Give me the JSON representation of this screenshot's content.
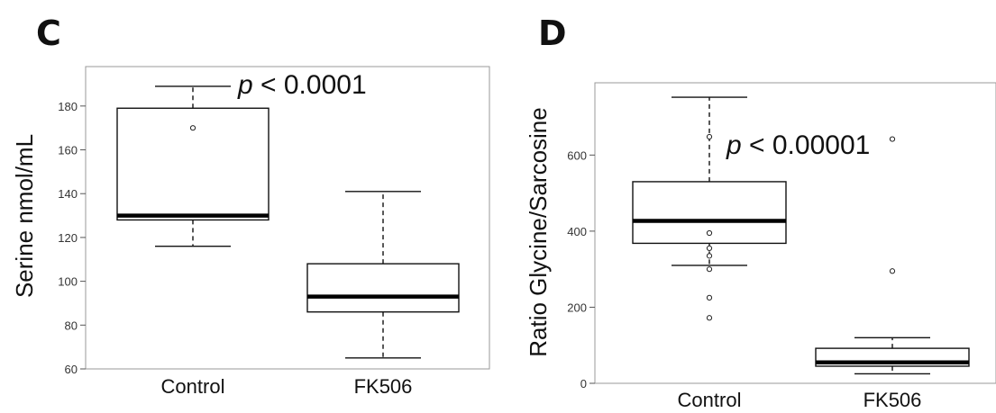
{
  "chart_data": [
    {
      "panel": "C",
      "type": "box",
      "ylabel": "Serine nmol/mL",
      "ylim": [
        60,
        198
      ],
      "yticks": [
        60,
        80,
        100,
        120,
        140,
        160,
        180
      ],
      "categories": [
        "Control",
        "FK506"
      ],
      "boxes": [
        {
          "category": "Control",
          "whisker_low": 116,
          "q1": 128,
          "median": 130,
          "q3": 179,
          "whisker_high": 189,
          "points": [
            170
          ]
        },
        {
          "category": "FK506",
          "whisker_low": 65,
          "q1": 86,
          "median": 93,
          "q3": 108,
          "whisker_high": 141,
          "points": []
        }
      ],
      "annotation": {
        "p": "p",
        "rest": " < 0.0001"
      },
      "grid": false,
      "legend": "none"
    },
    {
      "panel": "D",
      "type": "box",
      "ylabel": "Ratio Glycine/Sarcosine",
      "ylim": [
        0,
        790
      ],
      "yticks": [
        0,
        200,
        400,
        600
      ],
      "categories": [
        "Control",
        "FK506"
      ],
      "boxes": [
        {
          "category": "Control",
          "whisker_low": 310,
          "q1": 368,
          "median": 427,
          "q3": 530,
          "whisker_high": 752,
          "points": [
            648,
            395,
            355,
            335,
            300,
            225,
            172
          ]
        },
        {
          "category": "FK506",
          "whisker_low": 25,
          "q1": 45,
          "median": 55,
          "q3": 92,
          "whisker_high": 120,
          "points": [
            642,
            295
          ]
        }
      ],
      "annotation": {
        "p": "p",
        "rest": " < 0.00001"
      },
      "grid": false,
      "legend": "none"
    }
  ]
}
